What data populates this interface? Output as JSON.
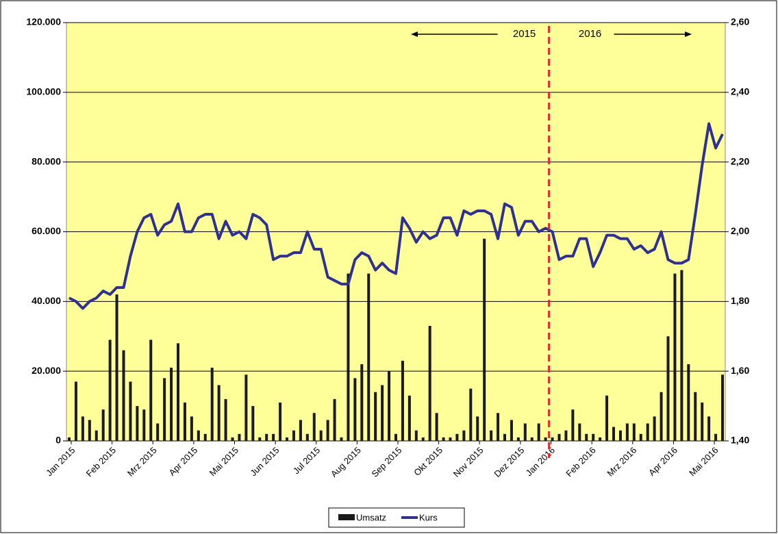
{
  "chart_data": {
    "type": "bar-line",
    "xlim": [
      0,
      96
    ],
    "xticks": [
      {
        "value": 0.3,
        "label": "Jan 2015"
      },
      {
        "value": 6.3,
        "label": "Feb 2015"
      },
      {
        "value": 12.3,
        "label": "Mrz 2015"
      },
      {
        "value": 18.3,
        "label": "Apr 2015"
      },
      {
        "value": 24.3,
        "label": "Mai 2015"
      },
      {
        "value": 30.3,
        "label": "Jun 2015"
      },
      {
        "value": 36.3,
        "label": "Jul 2015"
      },
      {
        "value": 42.3,
        "label": "Aug 2015"
      },
      {
        "value": 48.3,
        "label": "Sep 2015"
      },
      {
        "value": 54.3,
        "label": "Okt 2015"
      },
      {
        "value": 60.3,
        "label": "Nov 2015"
      },
      {
        "value": 66.3,
        "label": "Dez 2015"
      },
      {
        "value": 70.8,
        "label": "Jan 2016"
      },
      {
        "value": 76.8,
        "label": "Feb 2016"
      },
      {
        "value": 82.8,
        "label": "Mrz 2016"
      },
      {
        "value": 88.8,
        "label": "Apr 2016"
      },
      {
        "value": 94.8,
        "label": "Mai 2016"
      }
    ],
    "ylim": [
      0,
      120000
    ],
    "yticks": [
      {
        "value": 0,
        "label": "0"
      },
      {
        "value": 20000,
        "label": "20.000"
      },
      {
        "value": 40000,
        "label": "40.000"
      },
      {
        "value": 60000,
        "label": "60.000"
      },
      {
        "value": 80000,
        "label": "80.000"
      },
      {
        "value": 100000,
        "label": "100.000"
      },
      {
        "value": 120000,
        "label": "120.000"
      }
    ],
    "y2lim": [
      1.4,
      2.6
    ],
    "y2ticks": [
      {
        "value": 1.4,
        "label": "1,40"
      },
      {
        "value": 1.6,
        "label": "1,60"
      },
      {
        "value": 1.8,
        "label": "1,80"
      },
      {
        "value": 2.0,
        "label": "2,00"
      },
      {
        "value": 2.2,
        "label": "2,20"
      },
      {
        "value": 2.4,
        "label": "2,40"
      },
      {
        "value": 2.6,
        "label": "2,60"
      }
    ],
    "grid": true,
    "divider": 70.5,
    "annotations": [
      "2015",
      "2016"
    ],
    "legend": "bottom",
    "series": [
      {
        "name": "Umsatz",
        "type": "bar",
        "color": "#1a1a1a",
        "values": [
          1000,
          17000,
          7000,
          6000,
          3000,
          9000,
          29000,
          42000,
          26000,
          17000,
          10000,
          9000,
          29000,
          5000,
          18000,
          21000,
          28000,
          11000,
          7000,
          3000,
          2000,
          21000,
          16000,
          12000,
          1000,
          2000,
          19000,
          10000,
          1000,
          2000,
          2000,
          11000,
          1000,
          3000,
          6000,
          2000,
          8000,
          3000,
          6000,
          12000,
          1000,
          48000,
          18000,
          22000,
          48000,
          14000,
          16000,
          20000,
          2000,
          23000,
          13000,
          3000,
          1000,
          33000,
          8000,
          1000,
          1000,
          2000,
          3000,
          15000,
          7000,
          58000,
          3000,
          8000,
          2000,
          6000,
          1000,
          5000,
          1000,
          5000,
          1000,
          1000,
          2000,
          3000,
          9000,
          5000,
          2000,
          2000,
          1000,
          13000,
          4000,
          3000,
          5000,
          5000,
          2000,
          5000,
          7000,
          14000,
          30000,
          48000,
          49000,
          22000,
          14000,
          11000,
          7000,
          2000,
          19000
        ]
      },
      {
        "name": "Kurs",
        "type": "line",
        "axis": "y2",
        "color": "#2e3192",
        "values": [
          1.81,
          1.8,
          1.78,
          1.8,
          1.81,
          1.83,
          1.82,
          1.84,
          1.84,
          1.93,
          2.0,
          2.04,
          2.05,
          1.99,
          2.02,
          2.03,
          2.08,
          2.0,
          2.0,
          2.04,
          2.05,
          2.05,
          1.98,
          2.03,
          1.99,
          2.0,
          1.98,
          2.05,
          2.04,
          2.02,
          1.92,
          1.93,
          1.93,
          1.94,
          1.94,
          2.0,
          1.95,
          1.95,
          1.87,
          1.86,
          1.85,
          1.85,
          1.92,
          1.94,
          1.93,
          1.89,
          1.91,
          1.89,
          1.88,
          2.04,
          2.01,
          1.97,
          2.0,
          1.98,
          1.99,
          2.04,
          2.04,
          1.99,
          2.06,
          2.05,
          2.06,
          2.06,
          2.05,
          1.98,
          2.08,
          2.07,
          1.99,
          2.03,
          2.03,
          2.0,
          2.01,
          2.0,
          1.92,
          1.93,
          1.93,
          1.98,
          1.98,
          1.9,
          1.94,
          1.99,
          1.99,
          1.98,
          1.98,
          1.95,
          1.96,
          1.94,
          1.95,
          2.0,
          1.92,
          1.91,
          1.91,
          1.92,
          2.05,
          2.19,
          2.31,
          2.24,
          2.28
        ]
      }
    ]
  }
}
